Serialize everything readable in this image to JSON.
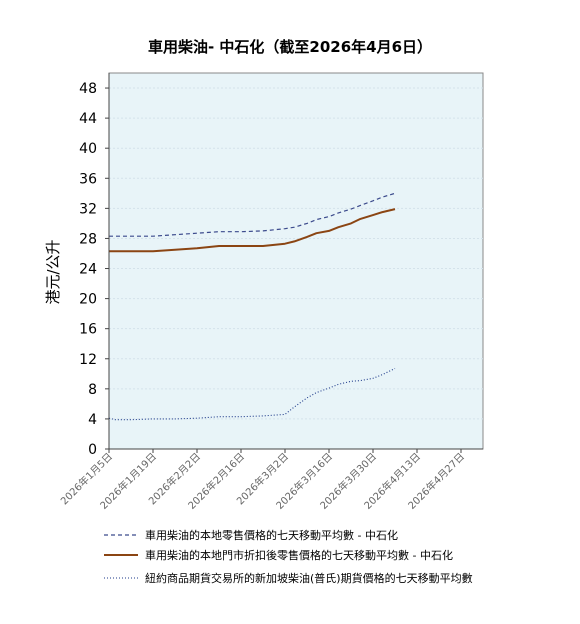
{
  "chart_data": {
    "type": "line",
    "title": "車用柴油- 中石化（截至2026年4月6日）",
    "ylabel": "港元/公升",
    "xlabel": "",
    "ylim": [
      0,
      50
    ],
    "yticks": [
      0,
      4,
      8,
      12,
      16,
      20,
      24,
      28,
      32,
      36,
      40,
      44,
      48
    ],
    "xlim": [
      "2026-01-05",
      "2026-05-04"
    ],
    "x_tick_dates": [
      "2026-01-05",
      "2026-01-19",
      "2026-02-02",
      "2026-02-16",
      "2026-03-02",
      "2026-03-16",
      "2026-03-30",
      "2026-04-13",
      "2026-04-27"
    ],
    "x_tick_labels": [
      "2026年1月5日",
      "2026年1月19日",
      "2026年2月2日",
      "2026年2月16日",
      "2026年3月2日",
      "2026年3月16日",
      "2026年3月30日",
      "2026年4月13日",
      "2026年4月27日"
    ],
    "grid": true,
    "legend_position": "bottom",
    "background": "#e8f4f8",
    "series": [
      {
        "name": "車用柴油的本地零售價格的七天移動平均數   - 中石化",
        "color": "#3b4a8c",
        "style": "dashed",
        "x": [
          "2026-01-05",
          "2026-01-12",
          "2026-01-19",
          "2026-01-26",
          "2026-02-02",
          "2026-02-09",
          "2026-02-16",
          "2026-02-23",
          "2026-03-02",
          "2026-03-05",
          "2026-03-09",
          "2026-03-12",
          "2026-03-16",
          "2026-03-19",
          "2026-03-23",
          "2026-03-26",
          "2026-03-30",
          "2026-04-02",
          "2026-04-06"
        ],
        "values": [
          28.3,
          28.3,
          28.3,
          28.5,
          28.7,
          28.9,
          28.9,
          29.0,
          29.3,
          29.5,
          30.0,
          30.5,
          30.9,
          31.4,
          31.9,
          32.4,
          33.0,
          33.5,
          34.0
        ]
      },
      {
        "name": "車用柴油的本地門市折扣後零售價格的七天移動平均數   - 中石化",
        "color": "#8b4513",
        "style": "solid",
        "x": [
          "2026-01-05",
          "2026-01-12",
          "2026-01-19",
          "2026-01-26",
          "2026-02-02",
          "2026-02-09",
          "2026-02-16",
          "2026-02-23",
          "2026-03-02",
          "2026-03-05",
          "2026-03-09",
          "2026-03-12",
          "2026-03-16",
          "2026-03-19",
          "2026-03-23",
          "2026-03-26",
          "2026-03-30",
          "2026-04-02",
          "2026-04-06"
        ],
        "values": [
          26.3,
          26.3,
          26.3,
          26.5,
          26.7,
          27.0,
          27.0,
          27.0,
          27.3,
          27.6,
          28.2,
          28.7,
          29.0,
          29.5,
          30.0,
          30.6,
          31.1,
          31.5,
          31.9
        ]
      },
      {
        "name": "紐約商品期貨交易所的新加坡柴油(普氏)期貨價格的七天移動平均數",
        "color": "#1e3a8a",
        "style": "dotted",
        "x": [
          "2026-01-05",
          "2026-01-07",
          "2026-01-12",
          "2026-01-19",
          "2026-01-26",
          "2026-02-02",
          "2026-02-09",
          "2026-02-16",
          "2026-02-23",
          "2026-03-02",
          "2026-03-05",
          "2026-03-09",
          "2026-03-12",
          "2026-03-16",
          "2026-03-19",
          "2026-03-23",
          "2026-03-26",
          "2026-03-30",
          "2026-04-02",
          "2026-04-06"
        ],
        "values": [
          4.1,
          3.9,
          3.9,
          4.0,
          4.0,
          4.1,
          4.3,
          4.3,
          4.4,
          4.6,
          5.6,
          6.8,
          7.5,
          8.1,
          8.6,
          9.0,
          9.1,
          9.4,
          9.9,
          10.7
        ]
      }
    ]
  }
}
